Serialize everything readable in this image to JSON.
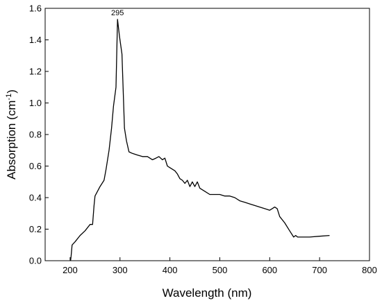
{
  "chart_data": {
    "type": "line",
    "xlabel": "Wavelength (nm)",
    "ylabel_main": "Absorption (cm",
    "ylabel_sup": "-1",
    "ylabel_close": ")",
    "xlim": [
      150,
      800
    ],
    "ylim": [
      0.0,
      1.6
    ],
    "xticks": [
      200,
      300,
      400,
      500,
      600,
      700,
      800
    ],
    "yticks": [
      0.0,
      0.2,
      0.4,
      0.6,
      0.8,
      1.0,
      1.2,
      1.4,
      1.6
    ],
    "xtick_labels": [
      "200",
      "300",
      "400",
      "500",
      "600",
      "700",
      "800"
    ],
    "ytick_labels": [
      "0.0",
      "0.2",
      "0.4",
      "0.6",
      "0.8",
      "1.0",
      "1.2",
      "1.4",
      "1.6"
    ],
    "grid": false,
    "line_color": "#000000",
    "annotations": [
      {
        "text": "295",
        "x": 295,
        "y": 1.53
      }
    ],
    "series": [
      {
        "x": [
          201,
          202,
          204,
          210,
          220,
          230,
          240,
          245,
          248,
          250,
          260,
          268,
          272,
          278,
          283,
          287,
          292,
          295,
          299,
          304,
          309,
          313,
          318,
          325,
          335,
          345,
          355,
          365,
          372,
          378,
          385,
          390,
          395,
          400,
          410,
          415,
          420,
          425,
          430,
          435,
          440,
          445,
          450,
          455,
          460,
          470,
          480,
          490,
          500,
          510,
          520,
          530,
          540,
          550,
          560,
          570,
          580,
          590,
          600,
          605,
          610,
          615,
          620,
          630,
          640,
          648,
          652,
          656,
          665,
          680,
          700,
          720
        ],
        "y": [
          0.0,
          0.03,
          0.1,
          0.12,
          0.16,
          0.19,
          0.23,
          0.23,
          0.35,
          0.41,
          0.47,
          0.51,
          0.58,
          0.7,
          0.84,
          0.98,
          1.1,
          1.53,
          1.42,
          1.31,
          0.84,
          0.76,
          0.69,
          0.68,
          0.67,
          0.66,
          0.66,
          0.64,
          0.65,
          0.66,
          0.64,
          0.65,
          0.6,
          0.59,
          0.57,
          0.55,
          0.52,
          0.51,
          0.49,
          0.51,
          0.47,
          0.5,
          0.47,
          0.5,
          0.46,
          0.44,
          0.42,
          0.42,
          0.42,
          0.41,
          0.41,
          0.4,
          0.38,
          0.37,
          0.36,
          0.35,
          0.34,
          0.33,
          0.32,
          0.33,
          0.34,
          0.33,
          0.28,
          0.24,
          0.19,
          0.15,
          0.16,
          0.15,
          0.15,
          0.15,
          0.155,
          0.16
        ]
      }
    ]
  }
}
